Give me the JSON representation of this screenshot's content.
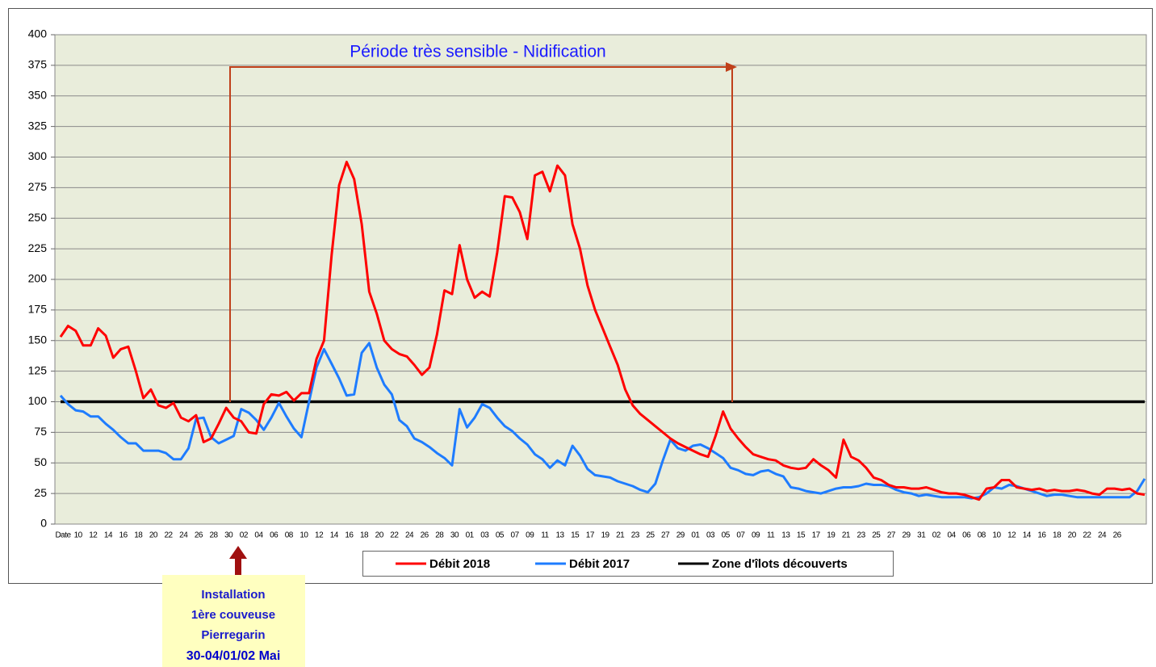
{
  "chart_data": {
    "type": "line",
    "title": "Période très sensible - Nidification",
    "annotation": [
      "Installation",
      "1ère couveuse",
      "Pierregarin",
      "30-04/01/02 Mai"
    ],
    "categories": [
      "Date",
      null,
      "10",
      null,
      "12",
      null,
      "14",
      null,
      "16",
      null,
      "18",
      null,
      "20",
      null,
      "22",
      null,
      "24",
      null,
      "26",
      null,
      "28",
      null,
      "30",
      null,
      "02",
      null,
      "04",
      null,
      "06",
      null,
      "08",
      null,
      "10",
      null,
      "12",
      null,
      "14",
      null,
      "16",
      null,
      "18",
      null,
      "20",
      null,
      "22",
      null,
      "24",
      null,
      "26",
      null,
      "28",
      null,
      "30",
      null,
      "01",
      null,
      "03",
      null,
      "05",
      null,
      "07",
      null,
      "09",
      null,
      "11",
      null,
      "13",
      null,
      "15",
      null,
      "17",
      null,
      "19",
      null,
      "21",
      null,
      "23",
      null,
      "25",
      null,
      "27",
      null,
      "29",
      null,
      "01",
      null,
      "03",
      null,
      "05",
      null,
      "07",
      null,
      "09",
      null,
      "11",
      null,
      "13",
      null,
      "15",
      null,
      "17",
      null,
      "19",
      null,
      "21",
      null,
      "23",
      null,
      "25",
      null,
      "27",
      null,
      "29",
      null,
      "31",
      null,
      "02",
      null,
      "04",
      null,
      "06",
      null,
      "08",
      null,
      "10",
      null,
      "12",
      null,
      "14",
      null,
      "16",
      null,
      "18",
      null,
      "20",
      null,
      "22",
      null,
      "24",
      null,
      "26",
      null,
      null,
      null,
      null
    ],
    "series": [
      {
        "name": "Débit 2018",
        "color": "#ff0000",
        "values": [
          153,
          162,
          158,
          146,
          146,
          160,
          154,
          136,
          143,
          145,
          125,
          103,
          110,
          97,
          95,
          99,
          87,
          84,
          89,
          67,
          70,
          82,
          95,
          87,
          84,
          75,
          74,
          98,
          106,
          105,
          108,
          101,
          107,
          107,
          135,
          150,
          220,
          277,
          296,
          282,
          245,
          190,
          172,
          150,
          143,
          139,
          137,
          130,
          122,
          128,
          155,
          191,
          188,
          228,
          200,
          185,
          190,
          186,
          222,
          268,
          267,
          255,
          233,
          285,
          288,
          272,
          293,
          285,
          245,
          225,
          195,
          175,
          160,
          145,
          130,
          110,
          97,
          90,
          85,
          80,
          75,
          70,
          66,
          63,
          60,
          57,
          55,
          72,
          92,
          78,
          70,
          63,
          57,
          55,
          53,
          52,
          48,
          46,
          45,
          46,
          53,
          48,
          44,
          38,
          69,
          55,
          52,
          46,
          38,
          36,
          32,
          30,
          30,
          29,
          29,
          30,
          28,
          26,
          25,
          25,
          24,
          22,
          20,
          29,
          30,
          36,
          36,
          30,
          29,
          28,
          29,
          27,
          28,
          27,
          27,
          28,
          27,
          25,
          24,
          29,
          29,
          28,
          29,
          25,
          24
        ]
      },
      {
        "name": "Débit 2017",
        "color": "#1e7cff",
        "values": [
          105,
          98,
          93,
          92,
          88,
          88,
          82,
          77,
          71,
          66,
          66,
          60,
          60,
          60,
          58,
          53,
          53,
          62,
          86,
          87,
          71,
          66,
          69,
          72,
          94,
          91,
          85,
          77,
          87,
          99,
          88,
          78,
          71,
          100,
          128,
          143,
          131,
          119,
          105,
          106,
          140,
          148,
          128,
          114,
          106,
          85,
          80,
          70,
          67,
          63,
          58,
          54,
          48,
          94,
          79,
          87,
          98,
          95,
          87,
          80,
          76,
          70,
          65,
          57,
          53,
          46,
          52,
          48,
          64,
          56,
          45,
          40,
          39,
          38,
          35,
          33,
          31,
          28,
          26,
          33,
          52,
          69,
          62,
          60,
          64,
          65,
          62,
          58,
          54,
          46,
          44,
          41,
          40,
          43,
          44,
          41,
          39,
          30,
          29,
          27,
          26,
          25,
          27,
          29,
          30,
          30,
          31,
          33,
          32,
          32,
          31,
          28,
          26,
          25,
          23,
          24,
          23,
          22,
          22,
          22,
          22,
          21,
          22,
          25,
          30,
          29,
          32,
          31,
          29,
          27,
          25,
          23,
          24,
          24,
          23,
          22,
          22,
          22,
          22,
          22,
          22,
          22,
          22,
          27,
          37
        ]
      },
      {
        "name": "Zone d'îlots découverts",
        "color": "#000000",
        "values": [
          100,
          100,
          100,
          100,
          100,
          100,
          100,
          100,
          100,
          100,
          100,
          100,
          100,
          100,
          100,
          100,
          100,
          100,
          100,
          100,
          100,
          100,
          100,
          100,
          100,
          100,
          100,
          100,
          100,
          100,
          100,
          100,
          100,
          100,
          100,
          100,
          100,
          100,
          100,
          100,
          100,
          100,
          100,
          100,
          100,
          100,
          100,
          100,
          100,
          100,
          100,
          100,
          100,
          100,
          100,
          100,
          100,
          100,
          100,
          100,
          100,
          100,
          100,
          100,
          100,
          100,
          100,
          100,
          100,
          100,
          100,
          100,
          100,
          100,
          100,
          100,
          100,
          100,
          100,
          100,
          100,
          100,
          100,
          100,
          100,
          100,
          100,
          100,
          100,
          100,
          100,
          100,
          100,
          100,
          100,
          100,
          100,
          100,
          100,
          100,
          100,
          100,
          100,
          100,
          100,
          100,
          100,
          100,
          100,
          100,
          100,
          100,
          100,
          100,
          100,
          100,
          100,
          100,
          100,
          100,
          100,
          100,
          100,
          100,
          100,
          100,
          100,
          100,
          100,
          100,
          100,
          100,
          100,
          100,
          100,
          100,
          100,
          100,
          100,
          100,
          100,
          100,
          100,
          100,
          100
        ]
      }
    ],
    "ylim": [
      0,
      400
    ],
    "yticks": [
      0,
      25,
      50,
      75,
      100,
      125,
      150,
      175,
      200,
      225,
      250,
      275,
      300,
      325,
      350,
      375,
      400
    ],
    "grid": true,
    "legend": "bottom"
  }
}
